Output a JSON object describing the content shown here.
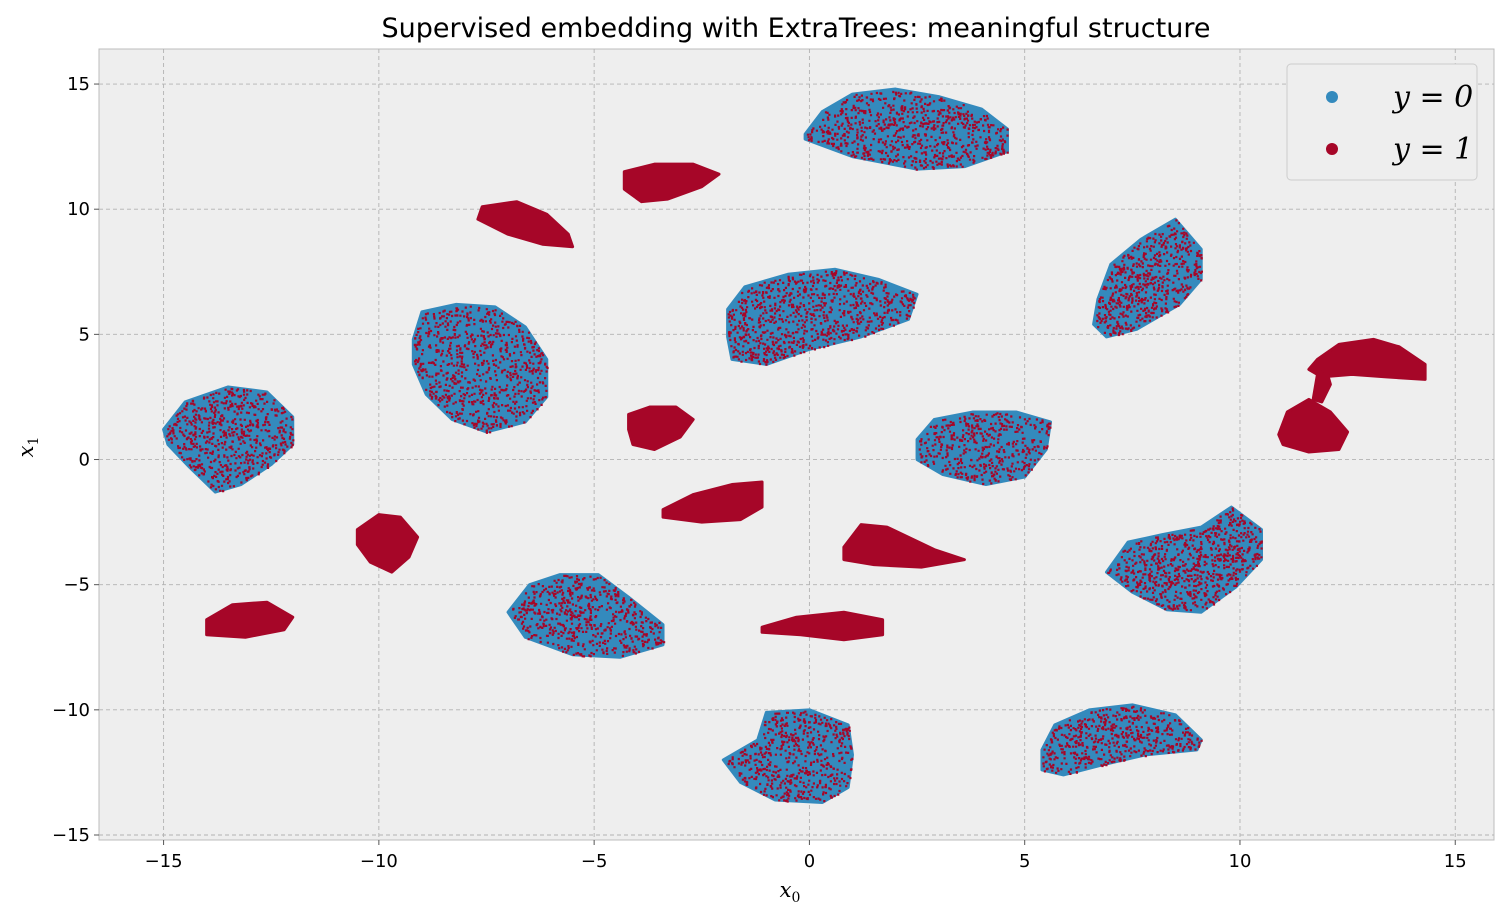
{
  "chart_data": {
    "type": "scatter",
    "title": "Supervised embedding with ExtraTrees: meaningful structure",
    "xlabel": "x",
    "xlabel_sub": "0",
    "ylabel": "x",
    "ylabel_sub": "1",
    "xlim": [
      -16.5,
      15.9
    ],
    "ylim": [
      -15.2,
      16.4
    ],
    "xticks": [
      -15,
      -10,
      -5,
      0,
      5,
      10,
      15
    ],
    "yticks": [
      -15,
      -10,
      -5,
      0,
      5,
      10,
      15
    ],
    "xtick_labels": [
      "−15",
      "−10",
      "−5",
      "0",
      "5",
      "10",
      "15"
    ],
    "ytick_labels": [
      "−15",
      "−10",
      "−5",
      "0",
      "5",
      "10",
      "15"
    ],
    "grid": true,
    "legend_position": "top-right",
    "legend": [
      {
        "label": "y = 0",
        "color": "#348ABD"
      },
      {
        "label": "y = 1",
        "color": "#A60628"
      }
    ],
    "colors": {
      "y0": "#348ABD",
      "y1": "#A60628",
      "axes_bg": "#EEEEEE",
      "grid": "#B2B2B2",
      "axes_edge": "#BCBCBC"
    },
    "clusters": [
      {
        "label": "mixed",
        "center": [
          2.0,
          13.2
        ],
        "outline": [
          [
            -0.1,
            13.0
          ],
          [
            0.3,
            13.9
          ],
          [
            1.0,
            14.6
          ],
          [
            2.0,
            14.8
          ],
          [
            3.0,
            14.5
          ],
          [
            4.0,
            14.0
          ],
          [
            4.6,
            13.2
          ],
          [
            4.6,
            12.3
          ],
          [
            3.6,
            11.7
          ],
          [
            2.5,
            11.6
          ],
          [
            1.0,
            12.1
          ],
          [
            -0.1,
            12.8
          ]
        ]
      },
      {
        "label": "mixed",
        "center": [
          0.3,
          5.8
        ],
        "outline": [
          [
            -1.9,
            6.0
          ],
          [
            -1.5,
            6.9
          ],
          [
            -0.5,
            7.4
          ],
          [
            0.6,
            7.6
          ],
          [
            1.6,
            7.2
          ],
          [
            2.5,
            6.6
          ],
          [
            2.3,
            5.6
          ],
          [
            1.2,
            4.9
          ],
          [
            0.0,
            4.4
          ],
          [
            -1.0,
            3.8
          ],
          [
            -1.8,
            4.0
          ],
          [
            -1.9,
            4.9
          ]
        ]
      },
      {
        "label": "mixed",
        "center": [
          -7.5,
          3.7
        ],
        "outline": [
          [
            -9.2,
            4.8
          ],
          [
            -9.0,
            5.9
          ],
          [
            -8.2,
            6.2
          ],
          [
            -7.3,
            6.1
          ],
          [
            -6.6,
            5.3
          ],
          [
            -6.1,
            4.0
          ],
          [
            -6.1,
            2.5
          ],
          [
            -6.6,
            1.5
          ],
          [
            -7.5,
            1.1
          ],
          [
            -8.3,
            1.6
          ],
          [
            -8.9,
            2.6
          ],
          [
            -9.2,
            3.8
          ]
        ]
      },
      {
        "label": "mixed",
        "center": [
          -13.5,
          0.8
        ],
        "outline": [
          [
            -15.0,
            1.2
          ],
          [
            -14.5,
            2.3
          ],
          [
            -13.5,
            2.9
          ],
          [
            -12.6,
            2.7
          ],
          [
            -12.0,
            1.7
          ],
          [
            -12.0,
            0.6
          ],
          [
            -12.5,
            -0.2
          ],
          [
            -13.2,
            -1.0
          ],
          [
            -13.8,
            -1.3
          ],
          [
            -14.4,
            -0.3
          ],
          [
            -14.9,
            0.6
          ]
        ]
      },
      {
        "label": "mixed",
        "center": [
          4.0,
          0.5
        ],
        "outline": [
          [
            2.5,
            0.8
          ],
          [
            2.9,
            1.6
          ],
          [
            3.8,
            1.9
          ],
          [
            4.8,
            1.9
          ],
          [
            5.6,
            1.5
          ],
          [
            5.5,
            0.4
          ],
          [
            5.0,
            -0.7
          ],
          [
            4.1,
            -1.0
          ],
          [
            3.1,
            -0.6
          ],
          [
            2.5,
            0.0
          ]
        ]
      },
      {
        "label": "mixed",
        "center": [
          8.0,
          7.2
        ],
        "outline": [
          [
            6.7,
            6.4
          ],
          [
            7.0,
            7.8
          ],
          [
            7.7,
            8.8
          ],
          [
            8.5,
            9.6
          ],
          [
            9.1,
            8.4
          ],
          [
            9.1,
            7.2
          ],
          [
            8.6,
            6.2
          ],
          [
            7.6,
            5.2
          ],
          [
            6.9,
            4.9
          ],
          [
            6.6,
            5.4
          ]
        ]
      },
      {
        "label": "mixed",
        "center": [
          8.8,
          -4.2
        ],
        "outline": [
          [
            6.9,
            -4.5
          ],
          [
            7.4,
            -3.3
          ],
          [
            8.2,
            -3.0
          ],
          [
            9.1,
            -2.7
          ],
          [
            9.8,
            -1.9
          ],
          [
            10.5,
            -2.8
          ],
          [
            10.5,
            -4.0
          ],
          [
            9.9,
            -5.1
          ],
          [
            9.1,
            -6.1
          ],
          [
            8.3,
            -6.0
          ],
          [
            7.5,
            -5.3
          ]
        ]
      },
      {
        "label": "mixed",
        "center": [
          -4.8,
          -6.4
        ],
        "outline": [
          [
            -7.0,
            -6.1
          ],
          [
            -6.5,
            -5.0
          ],
          [
            -5.8,
            -4.6
          ],
          [
            -4.9,
            -4.6
          ],
          [
            -4.2,
            -5.5
          ],
          [
            -3.4,
            -6.6
          ],
          [
            -3.4,
            -7.4
          ],
          [
            -4.4,
            -7.9
          ],
          [
            -5.5,
            -7.8
          ],
          [
            -6.6,
            -7.1
          ]
        ]
      },
      {
        "label": "mixed",
        "center": [
          0.0,
          -12.0
        ],
        "outline": [
          [
            -2.0,
            -12.0
          ],
          [
            -1.2,
            -11.2
          ],
          [
            -1.0,
            -10.1
          ],
          [
            0.0,
            -10.0
          ],
          [
            0.9,
            -10.6
          ],
          [
            1.0,
            -11.8
          ],
          [
            0.9,
            -13.1
          ],
          [
            0.3,
            -13.7
          ],
          [
            -0.8,
            -13.6
          ],
          [
            -1.6,
            -12.9
          ]
        ]
      },
      {
        "label": "mixed",
        "center": [
          7.2,
          -11.2
        ],
        "outline": [
          [
            5.4,
            -11.6
          ],
          [
            5.7,
            -10.6
          ],
          [
            6.5,
            -10.0
          ],
          [
            7.5,
            -9.8
          ],
          [
            8.5,
            -10.2
          ],
          [
            9.1,
            -11.2
          ],
          [
            9.0,
            -11.6
          ],
          [
            7.8,
            -11.8
          ],
          [
            6.8,
            -12.2
          ],
          [
            5.9,
            -12.6
          ],
          [
            5.4,
            -12.4
          ]
        ]
      },
      {
        "label": "y1",
        "center": [
          -3.3,
          11.0
        ],
        "outline": [
          [
            -4.3,
            11.5
          ],
          [
            -3.6,
            11.8
          ],
          [
            -2.7,
            11.8
          ],
          [
            -2.1,
            11.4
          ],
          [
            -2.5,
            10.9
          ],
          [
            -3.3,
            10.4
          ],
          [
            -3.9,
            10.3
          ],
          [
            -4.3,
            10.8
          ]
        ]
      },
      {
        "label": "y1",
        "center": [
          -6.9,
          9.4
        ],
        "outline": [
          [
            -7.6,
            10.1
          ],
          [
            -6.8,
            10.3
          ],
          [
            -6.1,
            9.8
          ],
          [
            -5.6,
            9.0
          ],
          [
            -5.5,
            8.5
          ],
          [
            -6.2,
            8.6
          ],
          [
            -7.0,
            9.0
          ],
          [
            -7.7,
            9.6
          ]
        ]
      },
      {
        "label": "y1",
        "center": [
          -3.6,
          1.2
        ],
        "outline": [
          [
            -4.2,
            1.8
          ],
          [
            -3.7,
            2.1
          ],
          [
            -3.1,
            2.1
          ],
          [
            -2.7,
            1.6
          ],
          [
            -3.0,
            0.9
          ],
          [
            -3.6,
            0.4
          ],
          [
            -4.1,
            0.6
          ],
          [
            -4.2,
            1.2
          ]
        ]
      },
      {
        "label": "y1",
        "center": [
          -2.1,
          -1.9
        ],
        "outline": [
          [
            -3.4,
            -2.0
          ],
          [
            -2.7,
            -1.4
          ],
          [
            -1.8,
            -1.0
          ],
          [
            -1.1,
            -0.9
          ],
          [
            -1.1,
            -1.9
          ],
          [
            -1.6,
            -2.4
          ],
          [
            -2.5,
            -2.5
          ],
          [
            -3.4,
            -2.3
          ]
        ]
      },
      {
        "label": "y1",
        "center": [
          -9.8,
          -3.3
        ],
        "outline": [
          [
            -10.5,
            -2.8
          ],
          [
            -10.0,
            -2.2
          ],
          [
            -9.5,
            -2.3
          ],
          [
            -9.1,
            -3.1
          ],
          [
            -9.3,
            -3.9
          ],
          [
            -9.7,
            -4.5
          ],
          [
            -10.2,
            -4.1
          ],
          [
            -10.5,
            -3.4
          ]
        ]
      },
      {
        "label": "y1",
        "center": [
          -13.2,
          -6.5
        ],
        "outline": [
          [
            -14.0,
            -6.4
          ],
          [
            -13.4,
            -5.8
          ],
          [
            -12.6,
            -5.7
          ],
          [
            -12.0,
            -6.3
          ],
          [
            -12.2,
            -6.8
          ],
          [
            -13.1,
            -7.1
          ],
          [
            -14.0,
            -7.0
          ]
        ]
      },
      {
        "label": "y1",
        "center": [
          2.0,
          -3.6
        ],
        "outline": [
          [
            0.8,
            -3.5
          ],
          [
            1.2,
            -2.6
          ],
          [
            1.8,
            -2.7
          ],
          [
            2.9,
            -3.6
          ],
          [
            3.6,
            -4.0
          ],
          [
            2.6,
            -4.3
          ],
          [
            1.5,
            -4.2
          ],
          [
            0.8,
            -4.0
          ]
        ]
      },
      {
        "label": "y1",
        "center": [
          0.3,
          -6.7
        ],
        "outline": [
          [
            -1.1,
            -6.7
          ],
          [
            -0.3,
            -6.3
          ],
          [
            0.8,
            -6.1
          ],
          [
            1.7,
            -6.4
          ],
          [
            1.7,
            -7.0
          ],
          [
            0.8,
            -7.2
          ],
          [
            -0.2,
            -7.0
          ],
          [
            -1.1,
            -6.9
          ]
        ]
      },
      {
        "label": "y1",
        "center": [
          12.7,
          3.9
        ],
        "outline": [
          [
            11.8,
            4.0
          ],
          [
            12.3,
            4.6
          ],
          [
            13.1,
            4.8
          ],
          [
            13.7,
            4.5
          ],
          [
            14.3,
            3.8
          ],
          [
            14.3,
            3.2
          ],
          [
            13.4,
            3.3
          ],
          [
            12.6,
            3.4
          ],
          [
            11.9,
            3.3
          ],
          [
            11.6,
            3.6
          ]
        ]
      },
      {
        "label": "y1",
        "center": [
          11.6,
          1.2
        ],
        "outline": [
          [
            10.9,
            1.0
          ],
          [
            11.1,
            1.9
          ],
          [
            11.6,
            2.4
          ],
          [
            12.1,
            1.9
          ],
          [
            12.5,
            1.1
          ],
          [
            12.3,
            0.4
          ],
          [
            11.6,
            0.3
          ],
          [
            11.0,
            0.6
          ]
        ]
      },
      {
        "label": "y1",
        "center": [
          11.8,
          2.8
        ],
        "outline": [
          [
            11.7,
            2.4
          ],
          [
            11.8,
            3.4
          ],
          [
            12.0,
            3.6
          ],
          [
            12.1,
            3.0
          ],
          [
            11.9,
            2.3
          ]
        ]
      }
    ]
  }
}
